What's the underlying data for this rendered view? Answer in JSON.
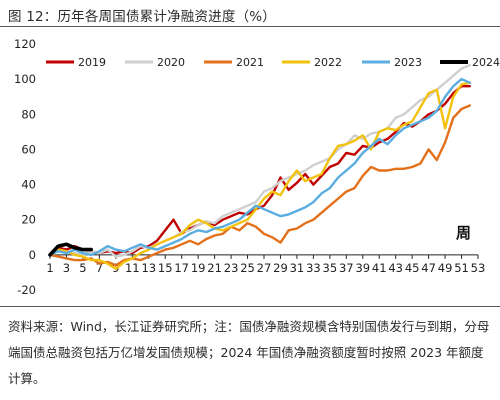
{
  "figure": {
    "title": "图 12：历年各周国债累计净融资进度（%）",
    "note": "资料来源：Wind，长江证券研究所；注：国债净融资规模含特别国债发行与到期，分母端国债总融资包括万亿增发国债规模；2024 年国债净融资额度暂时按照 2023 年额度计算。"
  },
  "chart_data": {
    "type": "line",
    "title": "",
    "xlabel": "周",
    "ylabel": "",
    "xlim": [
      1,
      53
    ],
    "ylim": [
      -20,
      120
    ],
    "x_ticks": [
      1,
      3,
      5,
      7,
      9,
      11,
      13,
      15,
      17,
      19,
      21,
      23,
      25,
      27,
      29,
      31,
      33,
      35,
      37,
      39,
      41,
      43,
      45,
      47,
      49,
      51,
      53
    ],
    "y_ticks": [
      -20,
      0,
      20,
      40,
      60,
      80,
      100,
      120
    ],
    "legend_position": "top",
    "series": [
      {
        "name": "2019",
        "color": "#c00000",
        "x": [
          1,
          2,
          3,
          4,
          5,
          6,
          7,
          8,
          9,
          10,
          11,
          12,
          13,
          14,
          15,
          16,
          17,
          18,
          19,
          20,
          21,
          22,
          23,
          24,
          25,
          26,
          27,
          28,
          29,
          30,
          31,
          32,
          33,
          34,
          35,
          36,
          37,
          38,
          39,
          40,
          41,
          42,
          43,
          44,
          45,
          46,
          47,
          48,
          49,
          50,
          51,
          52
        ],
        "values": [
          0,
          4,
          3,
          5,
          3,
          2,
          1,
          2,
          1,
          2,
          1,
          4,
          5,
          8,
          14,
          20,
          12,
          15,
          17,
          19,
          17,
          20,
          22,
          24,
          23,
          26,
          28,
          34,
          44,
          37,
          41,
          46,
          40,
          45,
          50,
          52,
          58,
          57,
          62,
          61,
          64,
          66,
          70,
          75,
          73,
          76,
          80,
          82,
          86,
          92,
          96,
          96
        ]
      },
      {
        "name": "2020",
        "color": "#cfcfcf",
        "x": [
          1,
          2,
          3,
          4,
          5,
          6,
          7,
          8,
          9,
          10,
          11,
          12,
          13,
          14,
          15,
          16,
          17,
          18,
          19,
          20,
          21,
          22,
          23,
          24,
          25,
          26,
          27,
          28,
          29,
          30,
          31,
          32,
          33,
          34,
          35,
          36,
          37,
          38,
          39,
          40,
          41,
          42,
          43,
          44,
          45,
          46,
          47,
          48,
          49,
          50,
          51,
          52
        ],
        "values": [
          0,
          3,
          2,
          1,
          0,
          2,
          1,
          3,
          -1,
          0,
          2,
          5,
          4,
          6,
          8,
          10,
          13,
          14,
          17,
          19,
          18,
          22,
          24,
          26,
          28,
          30,
          36,
          38,
          42,
          44,
          46,
          48,
          51,
          53,
          55,
          60,
          63,
          68,
          66,
          69,
          70,
          72,
          78,
          80,
          84,
          88,
          90,
          94,
          98,
          102,
          106,
          108
        ]
      },
      {
        "name": "2021",
        "color": "#e3701a",
        "x": [
          1,
          2,
          3,
          4,
          5,
          6,
          7,
          8,
          9,
          10,
          11,
          12,
          13,
          14,
          15,
          16,
          17,
          18,
          19,
          20,
          21,
          22,
          23,
          24,
          25,
          26,
          27,
          28,
          29,
          30,
          31,
          32,
          33,
          34,
          35,
          36,
          37,
          38,
          39,
          40,
          41,
          42,
          43,
          44,
          45,
          46,
          47,
          48,
          49,
          50,
          51,
          52
        ],
        "values": [
          0,
          -1,
          -2,
          -3,
          -3,
          -2,
          -5,
          -4,
          -6,
          -3,
          -2,
          -3,
          -1,
          1,
          3,
          4,
          6,
          8,
          6,
          9,
          11,
          12,
          16,
          14,
          18,
          16,
          12,
          10,
          7,
          14,
          15,
          18,
          20,
          24,
          28,
          32,
          36,
          38,
          45,
          50,
          48,
          48,
          49,
          49,
          50,
          52,
          60,
          54,
          64,
          78,
          83,
          85
        ]
      },
      {
        "name": "2022",
        "color": "#f2c10e",
        "x": [
          1,
          2,
          3,
          4,
          5,
          6,
          7,
          8,
          9,
          10,
          11,
          12,
          13,
          14,
          15,
          16,
          17,
          18,
          19,
          20,
          21,
          22,
          23,
          24,
          25,
          26,
          27,
          28,
          29,
          30,
          31,
          32,
          33,
          34,
          35,
          36,
          37,
          38,
          39,
          40,
          41,
          42,
          43,
          44,
          45,
          46,
          47,
          48,
          49,
          50,
          51,
          52
        ],
        "values": [
          0,
          3,
          2,
          0,
          -1,
          -3,
          -3,
          -5,
          -8,
          -4,
          -2,
          1,
          3,
          6,
          8,
          10,
          12,
          17,
          20,
          18,
          15,
          14,
          16,
          18,
          20,
          26,
          32,
          36,
          34,
          42,
          48,
          42,
          44,
          46,
          55,
          62,
          63,
          65,
          68,
          60,
          70,
          72,
          71,
          74,
          76,
          84,
          92,
          94,
          72,
          90,
          97,
          98
        ]
      },
      {
        "name": "2023",
        "color": "#5aade0",
        "x": [
          1,
          2,
          3,
          4,
          5,
          6,
          7,
          8,
          9,
          10,
          11,
          12,
          13,
          14,
          15,
          16,
          17,
          18,
          19,
          20,
          21,
          22,
          23,
          24,
          25,
          26,
          27,
          28,
          29,
          30,
          31,
          32,
          33,
          34,
          35,
          36,
          37,
          38,
          39,
          40,
          41,
          42,
          43,
          44,
          45,
          46,
          47,
          48,
          49,
          50,
          51,
          52
        ],
        "values": [
          0,
          2,
          1,
          3,
          1,
          0,
          2,
          5,
          3,
          2,
          4,
          6,
          4,
          3,
          5,
          7,
          9,
          12,
          14,
          13,
          15,
          16,
          18,
          20,
          24,
          28,
          26,
          24,
          22,
          23,
          25,
          27,
          30,
          35,
          38,
          44,
          48,
          52,
          58,
          62,
          66,
          63,
          68,
          72,
          74,
          76,
          78,
          82,
          90,
          96,
          100,
          98
        ]
      },
      {
        "name": "2024",
        "color": "#000000",
        "x": [
          1,
          2,
          3,
          4,
          5,
          6
        ],
        "values": [
          0,
          5,
          6,
          4,
          3,
          3
        ]
      }
    ]
  }
}
